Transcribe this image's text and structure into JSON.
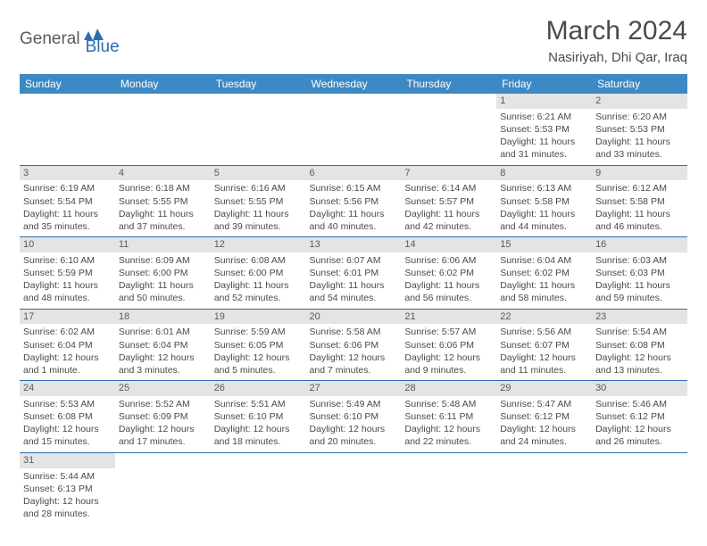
{
  "logo": {
    "general": "General",
    "blue": "Blue"
  },
  "title": "March 2024",
  "location": "Nasiriyah, Dhi Qar, Iraq",
  "colors": {
    "header_bg": "#3d89c4",
    "header_text": "#ffffff",
    "row_border": "#2b6fb0",
    "daynum_bg": "#e4e4e4",
    "text": "#4a4a4a"
  },
  "weekdays": [
    "Sunday",
    "Monday",
    "Tuesday",
    "Wednesday",
    "Thursday",
    "Friday",
    "Saturday"
  ],
  "days": [
    null,
    null,
    null,
    null,
    null,
    {
      "n": "1",
      "sr": "Sunrise: 6:21 AM",
      "ss": "Sunset: 5:53 PM",
      "d1": "Daylight: 11 hours",
      "d2": "and 31 minutes."
    },
    {
      "n": "2",
      "sr": "Sunrise: 6:20 AM",
      "ss": "Sunset: 5:53 PM",
      "d1": "Daylight: 11 hours",
      "d2": "and 33 minutes."
    },
    {
      "n": "3",
      "sr": "Sunrise: 6:19 AM",
      "ss": "Sunset: 5:54 PM",
      "d1": "Daylight: 11 hours",
      "d2": "and 35 minutes."
    },
    {
      "n": "4",
      "sr": "Sunrise: 6:18 AM",
      "ss": "Sunset: 5:55 PM",
      "d1": "Daylight: 11 hours",
      "d2": "and 37 minutes."
    },
    {
      "n": "5",
      "sr": "Sunrise: 6:16 AM",
      "ss": "Sunset: 5:55 PM",
      "d1": "Daylight: 11 hours",
      "d2": "and 39 minutes."
    },
    {
      "n": "6",
      "sr": "Sunrise: 6:15 AM",
      "ss": "Sunset: 5:56 PM",
      "d1": "Daylight: 11 hours",
      "d2": "and 40 minutes."
    },
    {
      "n": "7",
      "sr": "Sunrise: 6:14 AM",
      "ss": "Sunset: 5:57 PM",
      "d1": "Daylight: 11 hours",
      "d2": "and 42 minutes."
    },
    {
      "n": "8",
      "sr": "Sunrise: 6:13 AM",
      "ss": "Sunset: 5:58 PM",
      "d1": "Daylight: 11 hours",
      "d2": "and 44 minutes."
    },
    {
      "n": "9",
      "sr": "Sunrise: 6:12 AM",
      "ss": "Sunset: 5:58 PM",
      "d1": "Daylight: 11 hours",
      "d2": "and 46 minutes."
    },
    {
      "n": "10",
      "sr": "Sunrise: 6:10 AM",
      "ss": "Sunset: 5:59 PM",
      "d1": "Daylight: 11 hours",
      "d2": "and 48 minutes."
    },
    {
      "n": "11",
      "sr": "Sunrise: 6:09 AM",
      "ss": "Sunset: 6:00 PM",
      "d1": "Daylight: 11 hours",
      "d2": "and 50 minutes."
    },
    {
      "n": "12",
      "sr": "Sunrise: 6:08 AM",
      "ss": "Sunset: 6:00 PM",
      "d1": "Daylight: 11 hours",
      "d2": "and 52 minutes."
    },
    {
      "n": "13",
      "sr": "Sunrise: 6:07 AM",
      "ss": "Sunset: 6:01 PM",
      "d1": "Daylight: 11 hours",
      "d2": "and 54 minutes."
    },
    {
      "n": "14",
      "sr": "Sunrise: 6:06 AM",
      "ss": "Sunset: 6:02 PM",
      "d1": "Daylight: 11 hours",
      "d2": "and 56 minutes."
    },
    {
      "n": "15",
      "sr": "Sunrise: 6:04 AM",
      "ss": "Sunset: 6:02 PM",
      "d1": "Daylight: 11 hours",
      "d2": "and 58 minutes."
    },
    {
      "n": "16",
      "sr": "Sunrise: 6:03 AM",
      "ss": "Sunset: 6:03 PM",
      "d1": "Daylight: 11 hours",
      "d2": "and 59 minutes."
    },
    {
      "n": "17",
      "sr": "Sunrise: 6:02 AM",
      "ss": "Sunset: 6:04 PM",
      "d1": "Daylight: 12 hours",
      "d2": "and 1 minute."
    },
    {
      "n": "18",
      "sr": "Sunrise: 6:01 AM",
      "ss": "Sunset: 6:04 PM",
      "d1": "Daylight: 12 hours",
      "d2": "and 3 minutes."
    },
    {
      "n": "19",
      "sr": "Sunrise: 5:59 AM",
      "ss": "Sunset: 6:05 PM",
      "d1": "Daylight: 12 hours",
      "d2": "and 5 minutes."
    },
    {
      "n": "20",
      "sr": "Sunrise: 5:58 AM",
      "ss": "Sunset: 6:06 PM",
      "d1": "Daylight: 12 hours",
      "d2": "and 7 minutes."
    },
    {
      "n": "21",
      "sr": "Sunrise: 5:57 AM",
      "ss": "Sunset: 6:06 PM",
      "d1": "Daylight: 12 hours",
      "d2": "and 9 minutes."
    },
    {
      "n": "22",
      "sr": "Sunrise: 5:56 AM",
      "ss": "Sunset: 6:07 PM",
      "d1": "Daylight: 12 hours",
      "d2": "and 11 minutes."
    },
    {
      "n": "23",
      "sr": "Sunrise: 5:54 AM",
      "ss": "Sunset: 6:08 PM",
      "d1": "Daylight: 12 hours",
      "d2": "and 13 minutes."
    },
    {
      "n": "24",
      "sr": "Sunrise: 5:53 AM",
      "ss": "Sunset: 6:08 PM",
      "d1": "Daylight: 12 hours",
      "d2": "and 15 minutes."
    },
    {
      "n": "25",
      "sr": "Sunrise: 5:52 AM",
      "ss": "Sunset: 6:09 PM",
      "d1": "Daylight: 12 hours",
      "d2": "and 17 minutes."
    },
    {
      "n": "26",
      "sr": "Sunrise: 5:51 AM",
      "ss": "Sunset: 6:10 PM",
      "d1": "Daylight: 12 hours",
      "d2": "and 18 minutes."
    },
    {
      "n": "27",
      "sr": "Sunrise: 5:49 AM",
      "ss": "Sunset: 6:10 PM",
      "d1": "Daylight: 12 hours",
      "d2": "and 20 minutes."
    },
    {
      "n": "28",
      "sr": "Sunrise: 5:48 AM",
      "ss": "Sunset: 6:11 PM",
      "d1": "Daylight: 12 hours",
      "d2": "and 22 minutes."
    },
    {
      "n": "29",
      "sr": "Sunrise: 5:47 AM",
      "ss": "Sunset: 6:12 PM",
      "d1": "Daylight: 12 hours",
      "d2": "and 24 minutes."
    },
    {
      "n": "30",
      "sr": "Sunrise: 5:46 AM",
      "ss": "Sunset: 6:12 PM",
      "d1": "Daylight: 12 hours",
      "d2": "and 26 minutes."
    },
    {
      "n": "31",
      "sr": "Sunrise: 5:44 AM",
      "ss": "Sunset: 6:13 PM",
      "d1": "Daylight: 12 hours",
      "d2": "and 28 minutes."
    }
  ]
}
